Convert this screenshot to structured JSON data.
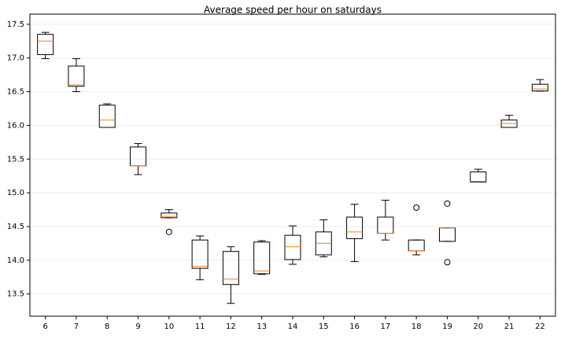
{
  "chart_data": {
    "type": "box",
    "title": "Average speed per hour on saturdays",
    "categories": [
      "6",
      "7",
      "8",
      "9",
      "10",
      "11",
      "12",
      "13",
      "14",
      "15",
      "16",
      "17",
      "18",
      "19",
      "20",
      "21",
      "22"
    ],
    "boxes": [
      {
        "whislo": 16.99,
        "q1": 17.05,
        "med": 17.25,
        "q3": 17.35,
        "whishi": 17.38
      },
      {
        "whislo": 16.5,
        "q1": 16.58,
        "med": 16.6,
        "q3": 16.88,
        "whishi": 16.99
      },
      {
        "whislo": 15.97,
        "q1": 15.97,
        "med": 16.08,
        "q3": 16.3,
        "whishi": 16.32
      },
      {
        "whislo": 15.27,
        "q1": 15.4,
        "med": 15.4,
        "q3": 15.68,
        "whishi": 15.73
      },
      {
        "whislo": 14.63,
        "q1": 14.63,
        "med": 14.65,
        "q3": 14.7,
        "whishi": 14.75,
        "fliers": [
          14.42
        ]
      },
      {
        "whislo": 13.71,
        "q1": 13.88,
        "med": 13.91,
        "q3": 14.3,
        "whishi": 14.36
      },
      {
        "whislo": 13.36,
        "q1": 13.64,
        "med": 13.72,
        "q3": 14.13,
        "whishi": 14.2
      },
      {
        "whislo": 13.79,
        "q1": 13.8,
        "med": 13.84,
        "q3": 14.27,
        "whishi": 14.29
      },
      {
        "whislo": 13.94,
        "q1": 14.01,
        "med": 14.2,
        "q3": 14.37,
        "whishi": 14.51
      },
      {
        "whislo": 14.05,
        "q1": 14.08,
        "med": 14.25,
        "q3": 14.42,
        "whishi": 14.6
      },
      {
        "whislo": 13.98,
        "q1": 14.32,
        "med": 14.42,
        "q3": 14.64,
        "whishi": 14.83
      },
      {
        "whislo": 14.3,
        "q1": 14.4,
        "med": 14.4,
        "q3": 14.64,
        "whishi": 14.89
      },
      {
        "whislo": 14.08,
        "q1": 14.14,
        "med": 14.14,
        "q3": 14.3,
        "whishi": 14.3,
        "fliers": [
          14.78
        ]
      },
      {
        "whislo": 14.28,
        "q1": 14.28,
        "med": 14.48,
        "q3": 14.48,
        "whishi": 14.48,
        "fliers": [
          14.84,
          13.97
        ]
      },
      {
        "whislo": 15.16,
        "q1": 15.16,
        "med": 15.17,
        "q3": 15.31,
        "whishi": 15.35
      },
      {
        "whislo": 15.97,
        "q1": 15.97,
        "med": 16.03,
        "q3": 16.08,
        "whishi": 16.15
      },
      {
        "whislo": 16.51,
        "q1": 16.51,
        "med": 16.54,
        "q3": 16.61,
        "whishi": 16.68
      }
    ],
    "box_color": "#000000",
    "median_color": "#ff7f0e",
    "ylim": [
      13.17,
      17.65
    ],
    "yticks": [
      13.5,
      {
        "value": 14,
        "label": "14.0"
      },
      14.5,
      {
        "value": 15,
        "label": "15.0"
      },
      15.5,
      {
        "value": 16,
        "label": "16.0"
      },
      16.5,
      {
        "value": 17,
        "label": "17.0"
      },
      17.5
    ],
    "grid": true
  }
}
